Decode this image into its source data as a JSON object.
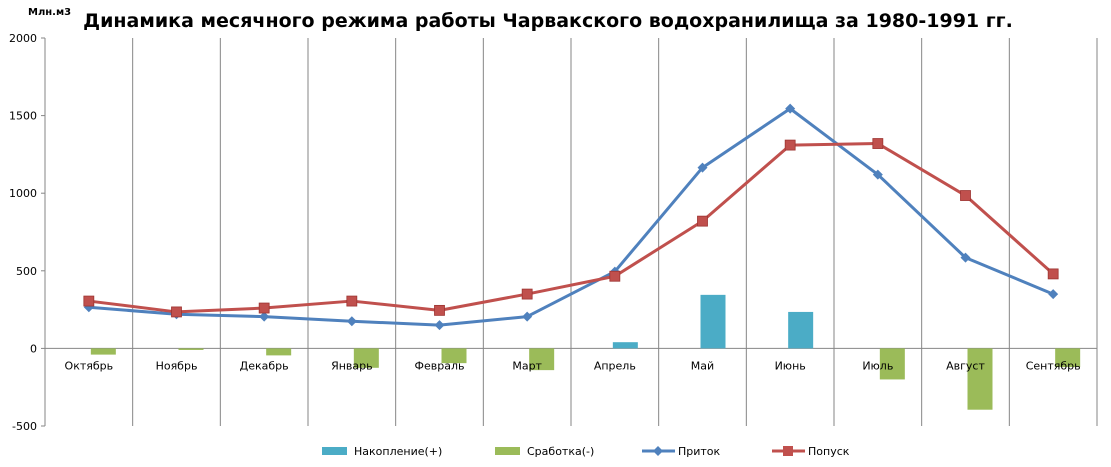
{
  "chart_data": {
    "type": "bar",
    "title": "Динамика месячного режима работы Чарвакского водохранилища за 1980-1991  гг.",
    "ylabel": "Млн.м3",
    "xlabel": "",
    "ylim": [
      -500,
      2000
    ],
    "yticks": [
      -500,
      0,
      500,
      1000,
      1500,
      2000
    ],
    "grid": "vertical",
    "legend": "bottom",
    "categories": [
      "Октябрь",
      "Ноябрь",
      "Декабрь",
      "Январь",
      "Февраль",
      "Март",
      "Апрель",
      "Май",
      "Июнь",
      "Июль",
      "Август",
      "Сентябрь"
    ],
    "series": [
      {
        "name": "Накопление(+)",
        "kind": "bar",
        "color": "#4BACC6",
        "values": [
          0,
          0,
          0,
          0,
          0,
          0,
          40,
          345,
          235,
          0,
          0,
          0
        ]
      },
      {
        "name": "Сработка(-)",
        "kind": "bar",
        "color": "#9BBB59",
        "values": [
          -40,
          -10,
          -45,
          -125,
          -95,
          -140,
          0,
          0,
          0,
          -200,
          -395,
          -120
        ]
      },
      {
        "name": "Приток",
        "kind": "line",
        "color": "#4F81BD",
        "marker": "diamond",
        "values": [
          265,
          220,
          205,
          175,
          150,
          205,
          495,
          1165,
          1545,
          1120,
          585,
          350
        ]
      },
      {
        "name": "Попуск",
        "kind": "line",
        "color": "#C0504D",
        "marker": "square",
        "values": [
          305,
          235,
          260,
          305,
          245,
          350,
          465,
          820,
          1310,
          1320,
          985,
          480
        ]
      }
    ]
  }
}
